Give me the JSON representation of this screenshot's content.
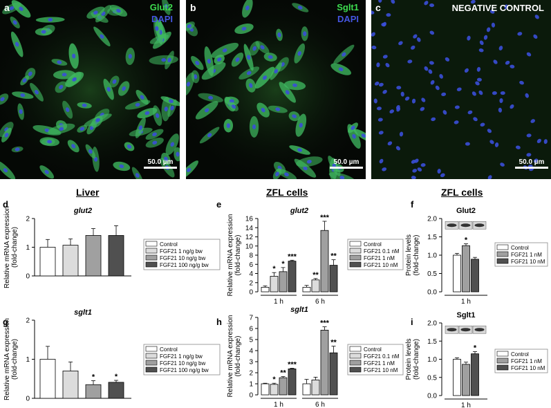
{
  "panels": {
    "a": {
      "letter": "a",
      "stain1": "Glut2",
      "stain2": "DAPI",
      "scale": "50.0 µm"
    },
    "b": {
      "letter": "b",
      "stain1": "Sglt1",
      "stain2": "DAPI",
      "scale": "50.0 µm"
    },
    "c": {
      "letter": "c",
      "title": "NEGATIVE CONTROL",
      "scale": "50.0 µm"
    }
  },
  "headings": {
    "liver": "Liver",
    "zfl1": "ZFL cells",
    "zfl2": "ZFL cells"
  },
  "colors": {
    "control": "#ffffff",
    "light": "#dcdcdc",
    "mid": "#a0a0a0",
    "dark": "#505050",
    "green": "#3ddc4f",
    "blue": "#3a4fd8"
  },
  "chart_data": [
    {
      "id": "d",
      "letter": "d",
      "type": "bar",
      "title": "glut2",
      "ylabel": "Relative mRNA expression (fold-change)",
      "ylim": [
        0,
        2
      ],
      "yticks": [
        "0",
        "1",
        "2"
      ],
      "series": [
        {
          "name": "Control",
          "values": [
            1.0
          ],
          "err": [
            0.27
          ]
        },
        {
          "name": "FGF21 1 ng/g bw",
          "values": [
            1.07
          ],
          "err": [
            0.22
          ]
        },
        {
          "name": "FGF21 10 ng/g bw",
          "values": [
            1.41
          ],
          "err": [
            0.24
          ]
        },
        {
          "name": "FGF21 100 ng/g bw",
          "values": [
            1.41
          ],
          "err": [
            0.34
          ]
        }
      ],
      "annotations": [
        "",
        "",
        "",
        ""
      ]
    },
    {
      "id": "e",
      "letter": "e",
      "type": "bar",
      "title": "glut2",
      "ylabel": "Relative mRNA expression (fold-change)",
      "ylim": [
        0,
        16
      ],
      "yticks": [
        "0",
        "2",
        "4",
        "6",
        "8",
        "10",
        "12",
        "14",
        "16"
      ],
      "categories": [
        "1 h",
        "6 h"
      ],
      "series": [
        {
          "name": "Control",
          "values": [
            1.0,
            1.0
          ],
          "err": [
            0.3,
            0.4
          ]
        },
        {
          "name": "FGF21 0.1 nM",
          "values": [
            3.4,
            2.6
          ],
          "err": [
            0.8,
            0.3
          ]
        },
        {
          "name": "FGF21 1 nM",
          "values": [
            4.4,
            13.4
          ],
          "err": [
            0.9,
            2.0
          ]
        },
        {
          "name": "FGF21 10 nM",
          "values": [
            6.7,
            5.8
          ],
          "err": [
            0.2,
            1.2
          ]
        }
      ],
      "annotations": [
        [
          "",
          "*",
          "*",
          "***"
        ],
        [
          "",
          "**",
          "***",
          "**"
        ]
      ]
    },
    {
      "id": "f",
      "letter": "f",
      "type": "bar",
      "title": "Glut2",
      "ylabel": "Protein levels (fold-change)",
      "ylim": [
        0,
        2
      ],
      "yticks": [
        "0.0",
        "0.5",
        "1.0",
        "1.5",
        "2.0"
      ],
      "categories": [
        "1 h"
      ],
      "series": [
        {
          "name": "Control",
          "values": [
            1.0
          ],
          "err": [
            0.05
          ]
        },
        {
          "name": "FGF21 1 nM",
          "values": [
            1.26
          ],
          "err": [
            0.05
          ]
        },
        {
          "name": "FGF21 10 nM",
          "values": [
            0.89
          ],
          "err": [
            0.05
          ]
        }
      ],
      "annotations": [
        [
          "",
          "*",
          ""
        ]
      ]
    },
    {
      "id": "g",
      "letter": "g",
      "type": "bar",
      "title": "sglt1",
      "ylabel": "Relative mRNA expression (fold-change)",
      "ylim": [
        0,
        2
      ],
      "yticks": [
        "0",
        "1",
        "2"
      ],
      "series": [
        {
          "name": "Control",
          "values": [
            1.0
          ],
          "err": [
            0.33
          ]
        },
        {
          "name": "FGF21 1 ng/g bw",
          "values": [
            0.7
          ],
          "err": [
            0.23
          ]
        },
        {
          "name": "FGF21 10 ng/g bw",
          "values": [
            0.35
          ],
          "err": [
            0.1
          ]
        },
        {
          "name": "FGF21 100 ng/g bw",
          "values": [
            0.41
          ],
          "err": [
            0.05
          ]
        }
      ],
      "annotations": [
        "",
        "",
        "*",
        "*"
      ]
    },
    {
      "id": "h",
      "letter": "h",
      "type": "bar",
      "title": "sglt1",
      "ylabel": "Relative mRNA expression (fold-change)",
      "ylim": [
        0,
        7
      ],
      "yticks": [
        "0",
        "1",
        "2",
        "3",
        "4",
        "5",
        "6",
        "7"
      ],
      "categories": [
        "1 h",
        "6 h"
      ],
      "series": [
        {
          "name": "Control",
          "values": [
            1.0,
            1.0
          ],
          "err": [
            0.05,
            0.4
          ]
        },
        {
          "name": "FGF21 0.1 nM",
          "values": [
            0.95,
            1.35
          ],
          "err": [
            0.1,
            0.25
          ]
        },
        {
          "name": "FGF21 1 nM",
          "values": [
            1.55,
            5.85
          ],
          "err": [
            0.1,
            0.3
          ]
        },
        {
          "name": "FGF21 10 nM",
          "values": [
            2.35,
            3.8
          ],
          "err": [
            0.05,
            0.6
          ]
        }
      ],
      "annotations": [
        [
          "",
          "*",
          "**",
          "***"
        ],
        [
          "",
          "",
          "***",
          "**"
        ]
      ]
    },
    {
      "id": "i",
      "letter": "i",
      "type": "bar",
      "title": "Sglt1",
      "ylabel": "Protein levels (fold-change)",
      "ylim": [
        0,
        2
      ],
      "yticks": [
        "0.0",
        "0.5",
        "1.0",
        "1.5",
        "2.0"
      ],
      "categories": [
        "1 h"
      ],
      "series": [
        {
          "name": "Control",
          "values": [
            1.0
          ],
          "err": [
            0.04
          ]
        },
        {
          "name": "FGF21 1 nM",
          "values": [
            0.86
          ],
          "err": [
            0.06
          ]
        },
        {
          "name": "FGF21 10 nM",
          "values": [
            1.15
          ],
          "err": [
            0.06
          ]
        }
      ],
      "annotations": [
        [
          "",
          "",
          "*"
        ]
      ]
    }
  ]
}
